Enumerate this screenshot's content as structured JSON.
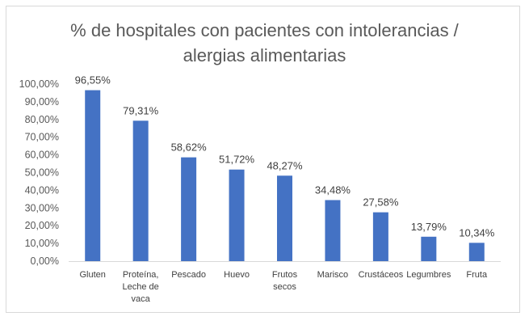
{
  "chart_data": {
    "type": "bar",
    "title_lines": [
      "% de hospitales con pacientes con intolerancias /",
      "alergias alimentarias"
    ],
    "categories": [
      [
        "Gluten"
      ],
      [
        "Proteína,",
        "Leche de",
        "vaca"
      ],
      [
        "Pescado"
      ],
      [
        "Huevo"
      ],
      [
        "Frutos",
        "secos"
      ],
      [
        "Marisco"
      ],
      [
        "Crustáceos"
      ],
      [
        "Legumbres"
      ],
      [
        "Fruta"
      ]
    ],
    "values": [
      96.55,
      79.31,
      58.62,
      51.72,
      48.27,
      34.48,
      27.58,
      13.79,
      10.34
    ],
    "data_labels": [
      "96,55%",
      "79,31%",
      "58,62%",
      "51,72%",
      "48,27%",
      "34,48%",
      "27,58%",
      "13,79%",
      "10,34%"
    ],
    "y_ticks": [
      "0,00%",
      "10,00%",
      "20,00%",
      "30,00%",
      "40,00%",
      "50,00%",
      "60,00%",
      "70,00%",
      "80,00%",
      "90,00%",
      "100,00%"
    ],
    "ylim": [
      0,
      100
    ],
    "grid": false,
    "bar_color": "#4472c4",
    "axis_color": "#d9d9d9"
  }
}
